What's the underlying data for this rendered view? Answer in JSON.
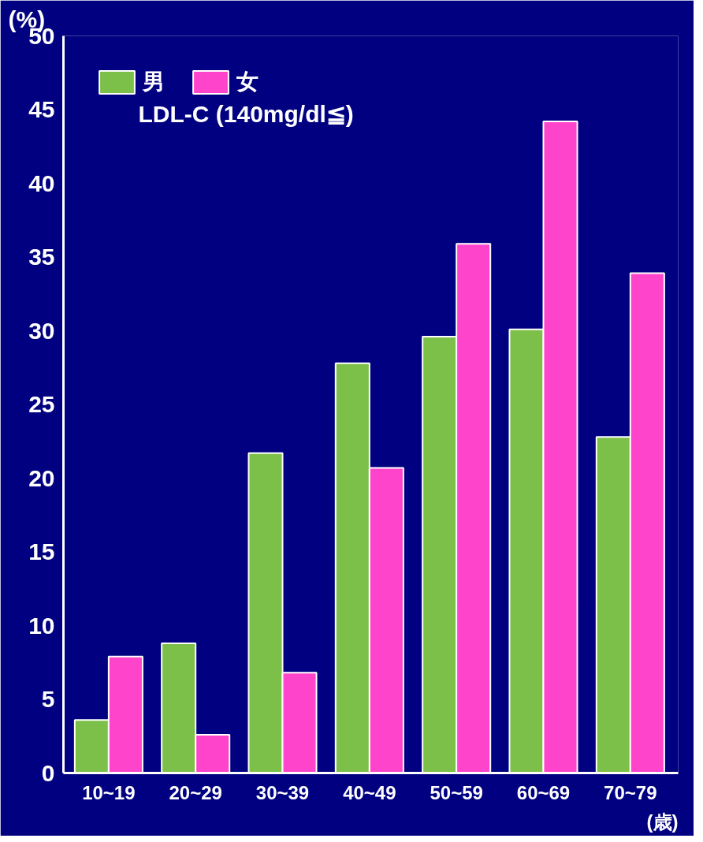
{
  "chart_data": {
    "type": "bar",
    "ylabel": "(%)",
    "xlabel": "(歳)",
    "categories": [
      "10~19",
      "20~29",
      "30~39",
      "40~49",
      "50~59",
      "60~69",
      "70~79"
    ],
    "series": [
      {
        "name": "男",
        "color": "#7cc04a",
        "values": [
          3.6,
          8.8,
          21.7,
          27.8,
          29.6,
          30.1,
          22.8
        ]
      },
      {
        "name": "女",
        "color": "#ff44cc",
        "values": [
          7.9,
          2.6,
          6.8,
          20.7,
          35.9,
          44.2,
          33.9
        ]
      }
    ],
    "annotations": [
      "LDL-C (140mg/dl≦)"
    ],
    "ylim": [
      0,
      50
    ],
    "yticks": [
      0,
      5,
      10,
      15,
      20,
      25,
      30,
      35,
      40,
      45,
      50
    ],
    "grid": false,
    "legend": "top left"
  }
}
